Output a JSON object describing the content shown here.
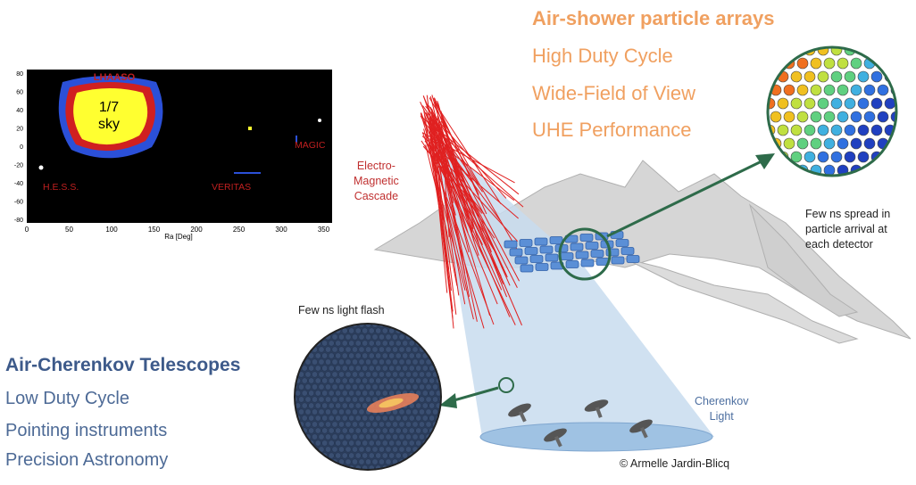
{
  "sky_map": {
    "xlabel": "Ra [Deg]",
    "x_ticks": [
      "0",
      "50",
      "100",
      "150",
      "200",
      "250",
      "300",
      "350"
    ],
    "y_ticks": [
      "80",
      "60",
      "40",
      "20",
      "0",
      "-20",
      "-40",
      "-60",
      "-80"
    ],
    "sky_fraction_line1": "1/7",
    "sky_fraction_line2": "sky",
    "labels": {
      "lhaaso": "LHAASO",
      "hess": "H.E.S.S.",
      "veritas": "VERITAS",
      "magic": "MAGIC"
    }
  },
  "air_shower": {
    "title": "Air-shower particle arrays",
    "items": [
      "High Duty Cycle",
      "Wide-Field of View",
      "UHE Performance"
    ]
  },
  "cherenkov_telescopes": {
    "title": "Air-Cherenkov Telescopes",
    "items": [
      "Low Duty Cycle",
      "Pointing instruments",
      "Precision Astronomy"
    ]
  },
  "annotations": {
    "em_cascade": [
      "Electro-",
      "Magnetic",
      "Cascade"
    ],
    "particle_spread": [
      "Few ns spread in",
      "particle arrival at",
      "each detector"
    ],
    "light_flash": "Few ns light flash",
    "cherenkov_light": [
      "Cherenkov",
      "Light"
    ],
    "credit": "© Armelle Jardin-Blicq"
  },
  "colors": {
    "orange_text": "#f0a060",
    "blue_text": "#3d5a8a",
    "cascade_red": "#e02020",
    "light_cone": "#c8dcef",
    "arrow_green": "#2e6b4a",
    "sky_bg": "#000000"
  }
}
